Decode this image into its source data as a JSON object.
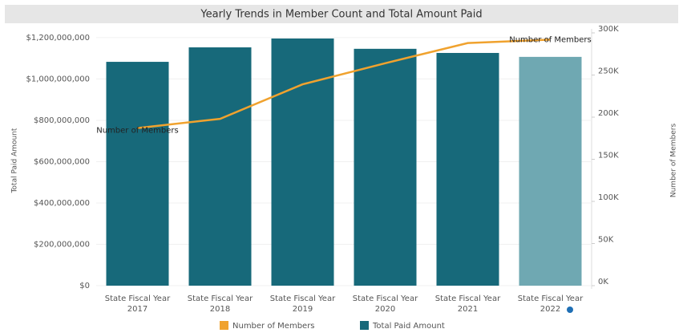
{
  "chart_data": {
    "type": "bar_line",
    "title": "Yearly Trends in Member Count and Total Amount Paid",
    "y_label": "Total Paid Amount",
    "y2_label": "Number of Members",
    "categories": [
      "State Fiscal Year 2017",
      "State Fiscal Year 2018",
      "State Fiscal Year 2019",
      "State Fiscal Year 2020",
      "State Fiscal Year 2021",
      "State Fiscal Year 2022"
    ],
    "series": [
      {
        "name": "Total Paid Amount",
        "type": "bar",
        "color": "#17697a",
        "colors": [
          "#17697a",
          "#17697a",
          "#17697a",
          "#17697a",
          "#17697a",
          "#6fa8b2"
        ],
        "values": [
          1083000000,
          1153000000,
          1196000000,
          1146000000,
          1126000000,
          1107000000
        ]
      },
      {
        "name": "Number of Members",
        "type": "line",
        "axis": "y2",
        "color": "#f0a22e",
        "values": [
          187000,
          198000,
          239000,
          264000,
          288000,
          292000
        ]
      }
    ],
    "ylim": [
      0,
      1223000000
    ],
    "yticks": [
      {
        "value": 0,
        "label": "$0"
      },
      {
        "value": 200000000,
        "label": "$200,000,000"
      },
      {
        "value": 400000000,
        "label": "$400,000,000"
      },
      {
        "value": 600000000,
        "label": "$600,000,000"
      },
      {
        "value": 800000000,
        "label": "$800,000,000"
      },
      {
        "value": 1000000000,
        "label": "$1,000,000,000"
      },
      {
        "value": 1200000000,
        "label": "$1,200,000,000"
      }
    ],
    "y2lim": [
      0,
      300000
    ],
    "y2ticks": [
      {
        "value": 0,
        "label": "0K"
      },
      {
        "value": 50000,
        "label": "50K"
      },
      {
        "value": 100000,
        "label": "100K"
      },
      {
        "value": 150000,
        "label": "150K"
      },
      {
        "value": 200000,
        "label": "200K"
      },
      {
        "value": 250000,
        "label": "250K"
      },
      {
        "value": 300000,
        "label": "300K"
      }
    ],
    "grid": true
  }
}
